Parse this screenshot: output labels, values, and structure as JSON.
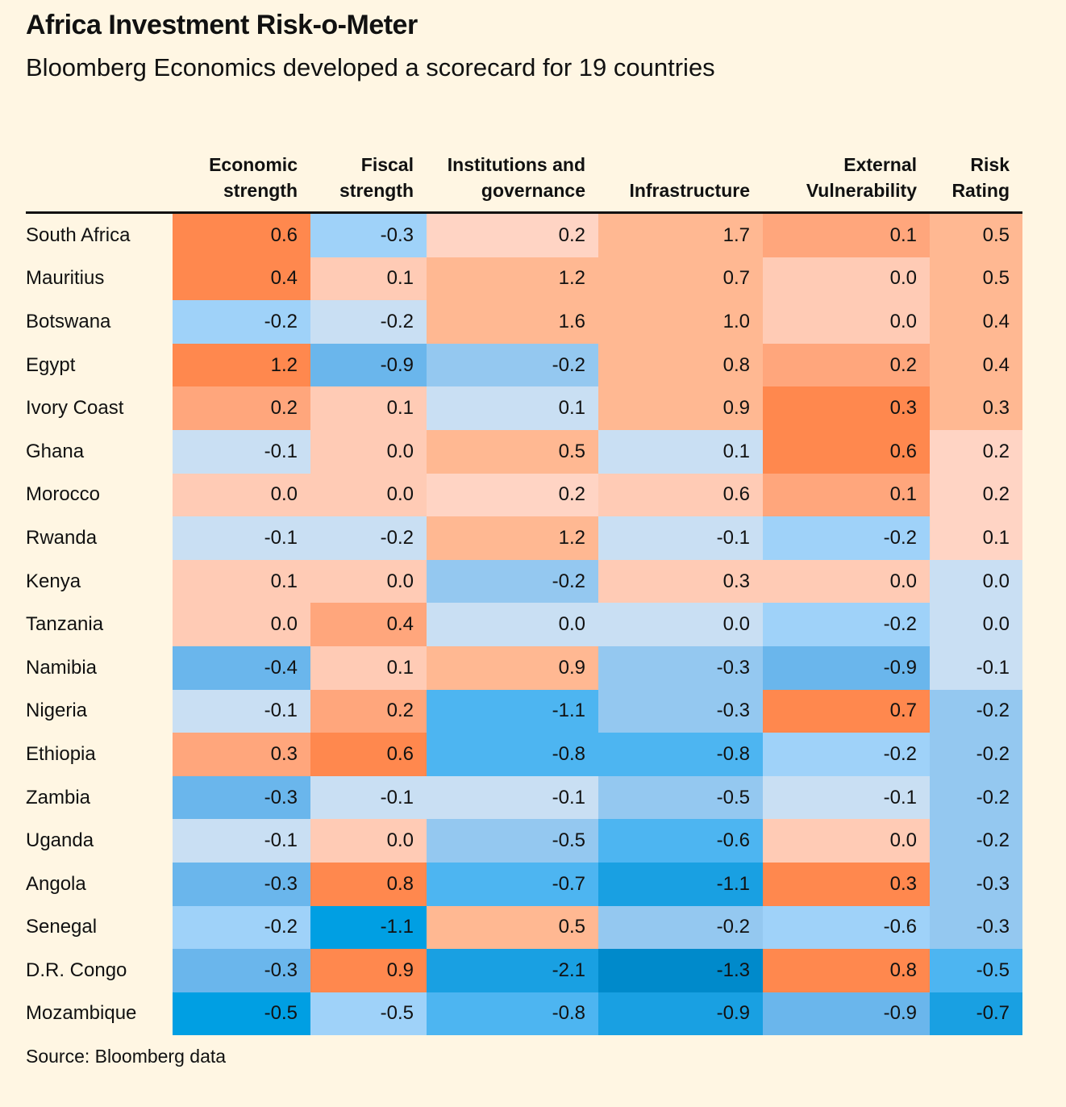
{
  "title": "Africa Investment Risk-o-Meter",
  "subtitle": "Bloomberg Economics developed a scorecard for 19 countries",
  "source": "Source: Bloomberg data",
  "chart_data": {
    "type": "heatmap",
    "title": "Africa Investment Risk-o-Meter",
    "columns": [
      "Economic strength",
      "Fiscal strength",
      "Institutions and governance",
      "Infrastructure",
      "External Vulnerability",
      "Risk Rating"
    ],
    "rows": [
      "South Africa",
      "Mauritius",
      "Botswana",
      "Egypt",
      "Ivory Coast",
      "Ghana",
      "Morocco",
      "Rwanda",
      "Kenya",
      "Tanzania",
      "Namibia",
      "Nigeria",
      "Ethiopia",
      "Zambia",
      "Uganda",
      "Angola",
      "Senegal",
      "D.R. Congo",
      "Mozambique"
    ],
    "values": [
      [
        "0.6",
        "-0.3",
        "0.2",
        "1.7",
        "0.1",
        "0.5"
      ],
      [
        "0.4",
        "0.1",
        "1.2",
        "0.7",
        "0.0",
        "0.5"
      ],
      [
        "-0.2",
        "-0.2",
        "1.6",
        "1.0",
        "0.0",
        "0.4"
      ],
      [
        "1.2",
        "-0.9",
        "-0.2",
        "0.8",
        "0.2",
        "0.4"
      ],
      [
        "0.2",
        "0.1",
        "0.1",
        "0.9",
        "0.3",
        "0.3"
      ],
      [
        "-0.1",
        "0.0",
        "0.5",
        "0.1",
        "0.6",
        "0.2"
      ],
      [
        "0.0",
        "0.0",
        "0.2",
        "0.6",
        "0.1",
        "0.2"
      ],
      [
        "-0.1",
        "-0.2",
        "1.2",
        "-0.1",
        "-0.2",
        "0.1"
      ],
      [
        "0.1",
        "0.0",
        "-0.2",
        "0.3",
        "0.0",
        "0.0"
      ],
      [
        "0.0",
        "0.4",
        "0.0",
        "0.0",
        "-0.2",
        "0.0"
      ],
      [
        "-0.4",
        "0.1",
        "0.9",
        "-0.3",
        "-0.9",
        "-0.1"
      ],
      [
        "-0.1",
        "0.2",
        "-1.1",
        "-0.3",
        "0.7",
        "-0.2"
      ],
      [
        "0.3",
        "0.6",
        "-0.8",
        "-0.8",
        "-0.2",
        "-0.2"
      ],
      [
        "-0.3",
        "-0.1",
        "-0.1",
        "-0.5",
        "-0.1",
        "-0.2"
      ],
      [
        "-0.1",
        "0.0",
        "-0.5",
        "-0.6",
        "0.0",
        "-0.2"
      ],
      [
        "-0.3",
        "0.8",
        "-0.7",
        "-1.1",
        "0.3",
        "-0.3"
      ],
      [
        "-0.2",
        "-1.1",
        "0.5",
        "-0.2",
        "-0.6",
        "-0.3"
      ],
      [
        "-0.3",
        "0.9",
        "-2.1",
        "-1.3",
        "0.8",
        "-0.5"
      ],
      [
        "-0.5",
        "-0.5",
        "-0.8",
        "-0.9",
        "-0.9",
        "-0.7"
      ]
    ],
    "palette": {
      "O4": "#ff884e",
      "O3": "#ffa67c",
      "O2": "#ffb892",
      "O1": "#ffcbb5",
      "O0": "#ffd4c4",
      "B0": "#c9dff3",
      "B1": "#9fd2f9",
      "B2": "#94c8f0",
      "B3": "#6ab6ec",
      "B4": "#4db5f1",
      "B5": "#19a0e2",
      "B6": "#008acb",
      "B7": "#009fe3"
    },
    "color_classes": [
      [
        "O4",
        "B1",
        "O0",
        "O2",
        "O3",
        "O2"
      ],
      [
        "O4",
        "O1",
        "O2",
        "O2",
        "O1",
        "O2"
      ],
      [
        "B1",
        "B0",
        "O2",
        "O2",
        "O1",
        "O2"
      ],
      [
        "O4",
        "B3",
        "B2",
        "O2",
        "O3",
        "O2"
      ],
      [
        "O3",
        "O1",
        "B0",
        "O2",
        "O4",
        "O2"
      ],
      [
        "B0",
        "O1",
        "O2",
        "B0",
        "O4",
        "O0"
      ],
      [
        "O1",
        "O1",
        "O0",
        "O1",
        "O3",
        "O0"
      ],
      [
        "B0",
        "B0",
        "O2",
        "B0",
        "B1",
        "O0"
      ],
      [
        "O1",
        "O1",
        "B2",
        "O1",
        "O1",
        "B0"
      ],
      [
        "O1",
        "O3",
        "B0",
        "B0",
        "B1",
        "B0"
      ],
      [
        "B3",
        "O1",
        "O2",
        "B2",
        "B3",
        "B0"
      ],
      [
        "B0",
        "O3",
        "B4",
        "B2",
        "O4",
        "B2"
      ],
      [
        "O3",
        "O4",
        "B4",
        "B4",
        "B1",
        "B2"
      ],
      [
        "B3",
        "B0",
        "B0",
        "B2",
        "B0",
        "B2"
      ],
      [
        "B0",
        "O1",
        "B2",
        "B4",
        "O1",
        "B2"
      ],
      [
        "B3",
        "O4",
        "B4",
        "B5",
        "O4",
        "B2"
      ],
      [
        "B1",
        "B7",
        "O2",
        "B2",
        "B1",
        "B2"
      ],
      [
        "B3",
        "O4",
        "B5",
        "B6",
        "O4",
        "B4"
      ],
      [
        "B7",
        "B1",
        "B4",
        "B5",
        "B3",
        "B5"
      ]
    ]
  }
}
